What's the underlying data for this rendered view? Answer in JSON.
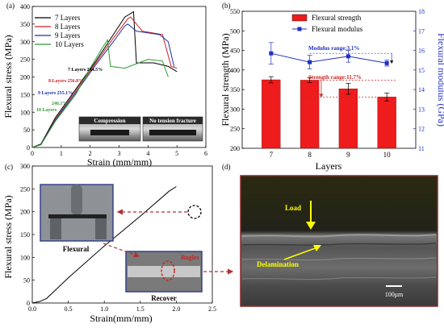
{
  "colors": {
    "line7": "#000000",
    "line8": "#cc2222",
    "line9": "#1d2fa8",
    "line10": "#2e9a2e",
    "bar": "#ee1c1c",
    "modulus": "#1f2fc0",
    "delam": "#ffff00"
  },
  "panels": {
    "a": {
      "letter": "(a)",
      "ylabel": "Flexural stress (MPa)",
      "xlabel": "Strain (mm/mm)",
      "xticks": [
        "0",
        "1",
        "2",
        "3",
        "4",
        "5",
        "6"
      ],
      "yticks": [
        "0",
        "50",
        "100",
        "150",
        "200",
        "250",
        "300",
        "350",
        "400"
      ],
      "legend": [
        "7 Layers",
        "8 Layers",
        "9 Layers",
        "10 Layers"
      ],
      "peak_labels": [
        "7 Layers 244.5%",
        "8 Layers 256.8%",
        "9 Layers 255.1%",
        "10 Layers 246.1%"
      ],
      "inset_left": "Compression",
      "inset_right": "No tension fracture"
    },
    "b": {
      "letter": "(b)",
      "ylabel_left": "Flexural strength (MPa)",
      "ylabel_right": "Flexural modulus (GPa)",
      "xlabel": "Layers",
      "yticks_left": [
        "200",
        "250",
        "300",
        "350",
        "400",
        "450",
        "500",
        "550"
      ],
      "yticks_right": [
        "11",
        "12",
        "13",
        "14",
        "15",
        "16",
        "17",
        "18"
      ],
      "legend": [
        "Flexural strength",
        "Flexural modulus"
      ],
      "annot_mod": "Modulus range:3.1%",
      "annot_str": "Strength range:11.7%"
    },
    "c": {
      "letter": "(c)",
      "ylabel": "Flexural stress (MPa)",
      "xlabel": "Strain(mm/mm)",
      "xticks": [
        "0.0",
        "0.5",
        "1.0",
        "1.5",
        "2.0",
        "2.5"
      ],
      "yticks": [
        "0",
        "50",
        "100",
        "150",
        "200",
        "250",
        "300"
      ],
      "inset1": "Flexural",
      "inset2_top": "Bugles",
      "inset2_bottom": "Recover"
    },
    "d": {
      "letter": "(d)",
      "load": "Load",
      "delam": "Delamination",
      "scale": "100μm"
    }
  },
  "chart_data": [
    {
      "type": "line",
      "title": "",
      "xlabel": "Strain (mm/mm)",
      "ylabel": "Flexural stress (MPa)",
      "xlim": [
        0,
        6
      ],
      "ylim": [
        0,
        400
      ],
      "series": [
        {
          "name": "7 Layers",
          "x": [
            0,
            0.3,
            0.8,
            1.5,
            2.2,
            2.8,
            3.2,
            3.5,
            3.6,
            4.2,
            4.7,
            4.9,
            5.0
          ],
          "y": [
            0,
            10,
            85,
            165,
            245,
            320,
            370,
            385,
            240,
            240,
            230,
            220,
            215
          ]
        },
        {
          "name": "8 Layers",
          "x": [
            0,
            0.3,
            0.8,
            1.5,
            2.2,
            2.8,
            3.3,
            3.4,
            3.8,
            4.5,
            4.8,
            5.0
          ],
          "y": [
            0,
            8,
            80,
            160,
            240,
            310,
            365,
            370,
            330,
            320,
            230,
            225
          ]
        },
        {
          "name": "9 Layers",
          "x": [
            0,
            0.3,
            0.8,
            1.5,
            2.2,
            2.8,
            3.2,
            3.3,
            3.6,
            4.4,
            4.7,
            4.9
          ],
          "y": [
            0,
            8,
            78,
            155,
            235,
            300,
            345,
            350,
            330,
            320,
            300,
            230
          ]
        },
        {
          "name": "10 Layers",
          "x": [
            0,
            0.3,
            0.8,
            1.5,
            2.0,
            2.4,
            2.6,
            2.7,
            3.2,
            4.0,
            4.5,
            4.7
          ],
          "y": [
            0,
            8,
            75,
            150,
            225,
            280,
            305,
            230,
            225,
            250,
            245,
            200
          ]
        }
      ],
      "annotations": [
        "7 Layers 244.5%",
        "8 Layers 256.8%",
        "9 Layers 255.1%",
        "10 Layers 246.1%",
        "Compression",
        "No tension fracture"
      ]
    },
    {
      "type": "bar",
      "title": "",
      "xlabel": "Layers",
      "ylabel": "Flexural strength (MPa)",
      "ylabel_right": "Flexural modulus (GPa)",
      "categories": [
        "7",
        "8",
        "9",
        "10"
      ],
      "ylim": [
        200,
        550
      ],
      "ylim_right": [
        11,
        18
      ],
      "series": [
        {
          "name": "Flexural strength",
          "values": [
            375,
            374,
            352,
            331
          ],
          "errors": [
            8,
            6,
            14,
            10
          ]
        },
        {
          "name": "Flexural modulus",
          "axis": "right",
          "values": [
            15.85,
            15.4,
            15.7,
            15.35
          ],
          "errors": [
            0.55,
            0.35,
            0.3,
            0.15
          ]
        }
      ],
      "annotations": [
        "Modulus range:3.1%",
        "Strength range:11.7%"
      ]
    },
    {
      "type": "line",
      "title": "",
      "xlabel": "Strain(mm/mm)",
      "ylabel": "Flexural stress (MPa)",
      "xlim": [
        0,
        2.5
      ],
      "ylim": [
        0,
        300
      ],
      "series": [
        {
          "name": "",
          "x": [
            0,
            0.1,
            0.2,
            0.3,
            0.5,
            1.0,
            1.5,
            1.9,
            2.0
          ],
          "y": [
            0,
            3,
            10,
            25,
            55,
            125,
            190,
            245,
            255
          ]
        }
      ],
      "annotations": [
        "Flexural",
        "Bugles",
        "Recover"
      ]
    }
  ]
}
